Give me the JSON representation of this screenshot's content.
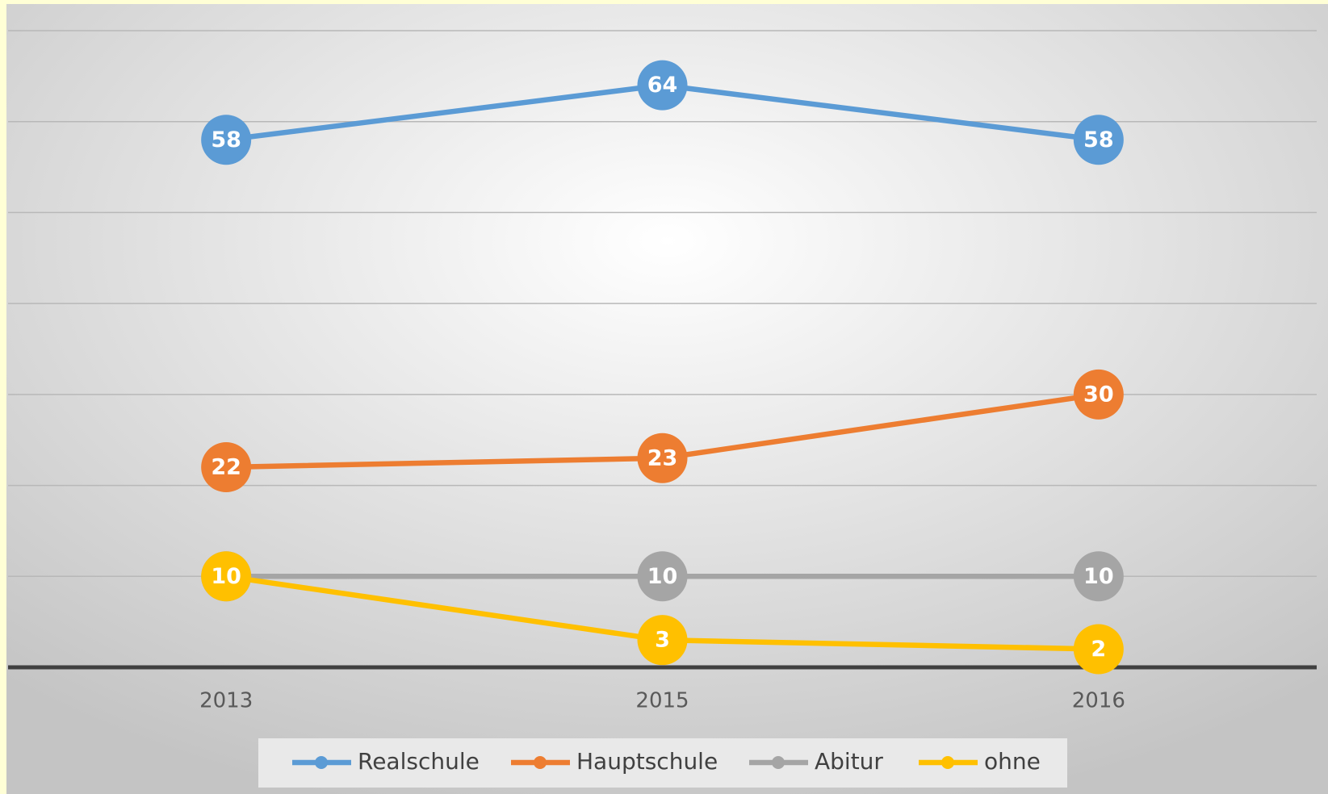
{
  "chart_data": {
    "type": "line",
    "categories": [
      "2013",
      "2015",
      "2016"
    ],
    "series": [
      {
        "name": "Realschule",
        "color": "#5b9bd5",
        "values": [
          58,
          64,
          58
        ]
      },
      {
        "name": "Hauptschule",
        "color": "#ed7d31",
        "values": [
          22,
          23,
          30
        ]
      },
      {
        "name": "Abitur",
        "color": "#a5a5a5",
        "values": [
          10,
          10,
          10
        ]
      },
      {
        "name": "ohne",
        "color": "#ffc000",
        "values": [
          10,
          3,
          2
        ]
      }
    ],
    "ylim": [
      0,
      70
    ],
    "yticks": [
      0,
      10,
      20,
      30,
      40,
      50,
      60,
      70
    ],
    "grid": true,
    "data_labels": true,
    "legend": "bottom"
  }
}
